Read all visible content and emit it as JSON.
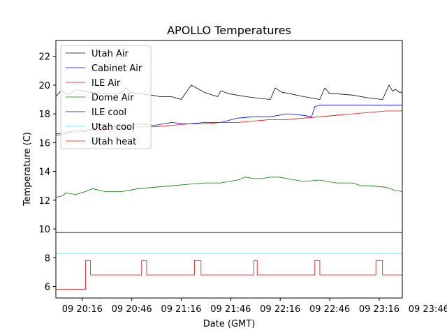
{
  "chart_data": {
    "type": "line",
    "title": "APOLLO Temperatures",
    "xlabel": "Date (GMT)",
    "ylabel": "Temperature (C)",
    "xlim": [
      0,
      210
    ],
    "ylim": [
      5.2,
      23.1
    ],
    "x_unit": "minutes after 09 20:00 GMT",
    "x_ticks": [
      {
        "x": 16,
        "label": "09 20:16"
      },
      {
        "x": 46,
        "label": "09 20:46"
      },
      {
        "x": 76,
        "label": "09 21:16"
      },
      {
        "x": 106,
        "label": "09 21:46"
      },
      {
        "x": 136,
        "label": "09 22:16"
      },
      {
        "x": 166,
        "label": "09 22:46"
      },
      {
        "x": 196,
        "label": "09 23:16"
      },
      {
        "x": 226,
        "label": "09 23:46"
      }
    ],
    "y_ticks": [
      {
        "y": 6,
        "label": "6"
      },
      {
        "y": 8,
        "label": "8"
      },
      {
        "y": 10,
        "label": "10"
      },
      {
        "y": 12,
        "label": "12"
      },
      {
        "y": 14,
        "label": "14"
      },
      {
        "y": 16,
        "label": "16"
      },
      {
        "y": 18,
        "label": "18"
      },
      {
        "y": 20,
        "label": "20"
      },
      {
        "y": 22,
        "label": "22"
      }
    ],
    "grid": false,
    "legend_position": "top-left",
    "series": [
      {
        "name": "Utah Air",
        "color": "#000000",
        "x": [
          0,
          3,
          8,
          12,
          20,
          30,
          38,
          43,
          45,
          50,
          58,
          63,
          70,
          76,
          82,
          90,
          95,
          98,
          100,
          105,
          115,
          122,
          130,
          133,
          137,
          142,
          150,
          160,
          163,
          166,
          170,
          180,
          190,
          198,
          202,
          204,
          206,
          208,
          210
        ],
        "y": [
          19.2,
          19.6,
          19.3,
          19.7,
          19.5,
          19.4,
          19.4,
          19.8,
          19.5,
          19.4,
          19.3,
          19.2,
          19.2,
          19.0,
          20.0,
          19.5,
          19.3,
          19.2,
          19.6,
          19.4,
          19.2,
          19.1,
          19.0,
          19.8,
          19.5,
          19.4,
          19.2,
          19.0,
          19.8,
          19.4,
          19.4,
          19.3,
          19.1,
          19.0,
          20.0,
          19.6,
          19.7,
          19.5,
          19.5
        ]
      },
      {
        "name": "Cabinet Air",
        "color": "#0000ff",
        "x": [
          0,
          10,
          20,
          30,
          40,
          50,
          60,
          70,
          80,
          90,
          100,
          110,
          120,
          130,
          140,
          150,
          155,
          157,
          160,
          170,
          180,
          190,
          200,
          210
        ],
        "y": [
          16.6,
          16.8,
          16.9,
          17.1,
          17.1,
          17.3,
          17.2,
          17.4,
          17.3,
          17.4,
          17.4,
          17.7,
          17.8,
          17.8,
          18.0,
          17.9,
          17.8,
          18.5,
          18.6,
          18.6,
          18.6,
          18.6,
          18.6,
          18.6
        ]
      },
      {
        "name": "ILE Air",
        "color": "#ff0000",
        "x": [
          0,
          10,
          20,
          30,
          40,
          50,
          60,
          70,
          80,
          90,
          100,
          110,
          120,
          130,
          140,
          150,
          160,
          170,
          180,
          190,
          200,
          210
        ],
        "y": [
          16.5,
          16.7,
          16.8,
          16.9,
          17.0,
          17.1,
          17.1,
          17.2,
          17.3,
          17.3,
          17.4,
          17.4,
          17.5,
          17.6,
          17.6,
          17.7,
          17.8,
          17.9,
          18.0,
          18.1,
          18.2,
          18.2
        ]
      },
      {
        "name": "Dome Air",
        "color": "#008000",
        "x": [
          0,
          4,
          6,
          12,
          18,
          22,
          26,
          30,
          40,
          50,
          60,
          70,
          80,
          90,
          100,
          110,
          115,
          120,
          125,
          130,
          135,
          140,
          150,
          160,
          170,
          180,
          185,
          190,
          200,
          205,
          210
        ],
        "y": [
          12.2,
          12.3,
          12.5,
          12.4,
          12.6,
          12.8,
          12.7,
          12.6,
          12.6,
          12.8,
          12.9,
          13.0,
          13.1,
          13.2,
          13.2,
          13.4,
          13.6,
          13.5,
          13.5,
          13.6,
          13.6,
          13.5,
          13.3,
          13.4,
          13.2,
          13.2,
          13.0,
          13.0,
          12.9,
          12.7,
          12.6
        ]
      },
      {
        "name": "ILE cool",
        "color": "#00007f",
        "x": [
          0,
          210
        ],
        "y": [
          9.75,
          9.75
        ]
      },
      {
        "name": "Utah cool",
        "color": "#00ffff",
        "x": [
          0,
          210
        ],
        "y": [
          8.3,
          8.3
        ]
      },
      {
        "name": "Utah heat",
        "color": "#ff0000",
        "x": [
          0,
          18,
          18,
          21,
          21,
          52,
          52,
          55,
          55,
          84,
          84,
          88,
          88,
          120,
          120,
          122,
          122,
          157,
          157,
          160,
          160,
          194,
          194,
          198,
          198,
          210
        ],
        "y": [
          5.8,
          5.8,
          7.8,
          7.8,
          6.8,
          6.8,
          7.8,
          7.8,
          6.8,
          6.8,
          7.8,
          7.8,
          6.8,
          6.8,
          7.8,
          7.8,
          6.8,
          6.8,
          7.8,
          7.8,
          6.8,
          6.8,
          7.8,
          7.8,
          6.8,
          6.8
        ]
      }
    ]
  }
}
